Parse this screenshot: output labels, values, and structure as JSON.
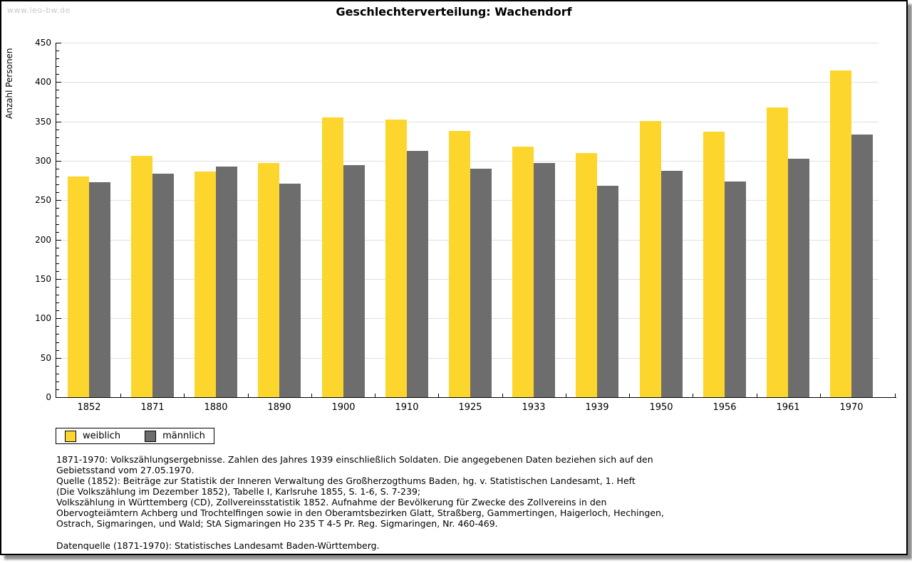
{
  "watermark": "www.leo-bw.de",
  "chart_data": {
    "type": "bar",
    "title": "Geschlechterverteilung: Wachendorf",
    "xlabel": "",
    "ylabel": "Anzahl Personen",
    "ylim": [
      0,
      450
    ],
    "ytick_step": 50,
    "ytick_minor_step": 10,
    "yticks": [
      0,
      50,
      100,
      150,
      200,
      250,
      300,
      350,
      400,
      450
    ],
    "grid": true,
    "legend_position": "bottom-left",
    "categories": [
      "1852",
      "1871",
      "1880",
      "1890",
      "1900",
      "1910",
      "1925",
      "1933",
      "1939",
      "1950",
      "1956",
      "1961",
      "1970"
    ],
    "series": [
      {
        "name": "weiblich",
        "color": "#FCD62C",
        "values": [
          280,
          306,
          286,
          297,
          355,
          352,
          338,
          318,
          310,
          351,
          337,
          368,
          415
        ]
      },
      {
        "name": "männlich",
        "color": "#6D6D6D",
        "values": [
          273,
          284,
          293,
          271,
          295,
          313,
          290,
          297,
          268,
          287,
          274,
          303,
          333
        ]
      }
    ]
  },
  "footnote_lines": [
    "1871-1970: Volkszählungsergebnisse. Zahlen des Jahres 1939 einschließlich Soldaten. Die angegebenen Daten beziehen sich auf den",
    "Gebietsstand vom 27.05.1970.",
    "Quelle (1852): Beiträge zur Statistik der Inneren Verwaltung des Großherzogthums Baden, hg. v. Statistischen Landesamt, 1. Heft",
    "(Die Volkszählung im Dezember 1852), Tabelle I, Karlsruhe 1855, S. 1-6, S. 7-239;",
    "Volkszählung in Württemberg (CD), Zollvereinsstatistik 1852. Aufnahme der Bevölkerung für Zwecke des Zollvereins in den",
    "Obervogteiämtern Achberg und Trochtelfingen sowie in den Oberamtsbezirken Glatt, Straßberg, Gammertingen, Haigerloch, Hechingen,",
    "Ostrach, Sigmaringen, und Wald; StA Sigmaringen Ho 235 T 4-5 Pr. Reg. Sigmaringen, Nr. 460-469."
  ],
  "datasource": "Datenquelle (1871-1970): Statistisches Landesamt Baden-Württemberg.",
  "colors": {
    "weiblich": "#FCD62C",
    "maennlich": "#6D6D6D",
    "grid": "#E0E0E0",
    "watermark": "#C9C9C9",
    "frame_border": "#000000"
  }
}
